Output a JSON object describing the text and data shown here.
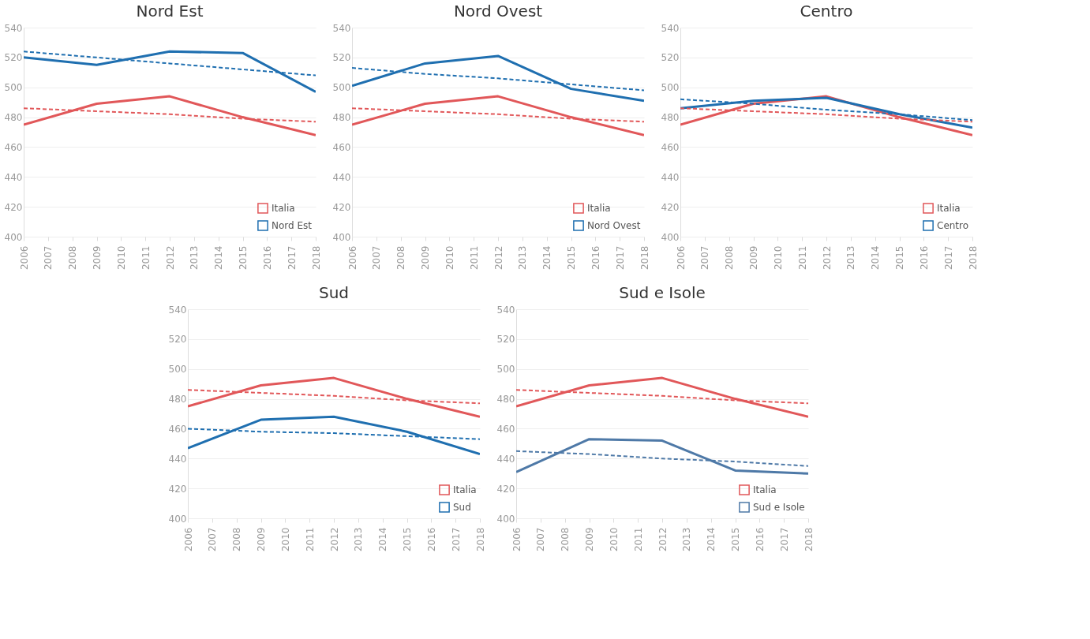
{
  "chart_data": [
    {
      "type": "line",
      "title": "Nord Est",
      "x": [
        2006,
        2009,
        2012,
        2015,
        2018
      ],
      "xlim": [
        2006,
        2018
      ],
      "xticks": [
        2006,
        2007,
        2008,
        2009,
        2010,
        2011,
        2012,
        2013,
        2014,
        2015,
        2016,
        2017,
        2018
      ],
      "ylim": [
        400,
        540
      ],
      "yticks": [
        400,
        420,
        440,
        460,
        480,
        500,
        520,
        540
      ],
      "grid": "y",
      "legend": "bottom right",
      "line_style": "solid",
      "series": [
        {
          "name": "Italia",
          "color": "#e15759",
          "values": [
            475,
            489,
            494,
            480,
            468
          ]
        },
        {
          "name": "Nord Est",
          "color": "#1f6fb0",
          "values": [
            520,
            515,
            524,
            523,
            497
          ]
        },
        {
          "type": "line",
          "color": "#e15759",
          "line_style": "dashed",
          "values": [
            486,
            484,
            482,
            479,
            477
          ]
        },
        {
          "type": "line",
          "color": "#1f6fb0",
          "line_style": "dashed",
          "values": [
            524,
            520,
            516,
            512,
            508
          ]
        }
      ]
    },
    {
      "type": "line",
      "title": "Nord Ovest",
      "x": [
        2006,
        2009,
        2012,
        2015,
        2018
      ],
      "xlim": [
        2006,
        2018
      ],
      "xticks": [
        2006,
        2007,
        2008,
        2009,
        2010,
        2011,
        2012,
        2013,
        2014,
        2015,
        2016,
        2017,
        2018
      ],
      "ylim": [
        400,
        540
      ],
      "yticks": [
        400,
        420,
        440,
        460,
        480,
        500,
        520,
        540
      ],
      "grid": "y",
      "legend": "bottom right",
      "line_style": "solid",
      "series": [
        {
          "name": "Italia",
          "color": "#e15759",
          "values": [
            475,
            489,
            494,
            480,
            468
          ]
        },
        {
          "name": "Nord Ovest",
          "color": "#1f6fb0",
          "values": [
            501,
            516,
            521,
            499,
            491
          ]
        },
        {
          "type": "line",
          "color": "#e15759",
          "line_style": "dashed",
          "values": [
            486,
            484,
            482,
            479,
            477
          ]
        },
        {
          "type": "line",
          "color": "#1f6fb0",
          "line_style": "dashed",
          "values": [
            513,
            509,
            506,
            502,
            498
          ]
        }
      ]
    },
    {
      "type": "line",
      "title": "Centro",
      "x": [
        2006,
        2009,
        2012,
        2015,
        2018
      ],
      "xlim": [
        2006,
        2018
      ],
      "xticks": [
        2006,
        2007,
        2008,
        2009,
        2010,
        2011,
        2012,
        2013,
        2014,
        2015,
        2016,
        2017,
        2018
      ],
      "ylim": [
        400,
        540
      ],
      "yticks": [
        400,
        420,
        440,
        460,
        480,
        500,
        520,
        540
      ],
      "grid": "y",
      "legend": "bottom right",
      "line_style": "solid",
      "series": [
        {
          "name": "Italia",
          "color": "#e15759",
          "values": [
            475,
            489,
            494,
            480,
            468
          ]
        },
        {
          "name": "Centro",
          "color": "#1f6fb0",
          "values": [
            486,
            491,
            493,
            482,
            473
          ]
        },
        {
          "type": "line",
          "color": "#e15759",
          "line_style": "dashed",
          "values": [
            486,
            484,
            482,
            479,
            477
          ]
        },
        {
          "type": "line",
          "color": "#1f6fb0",
          "line_style": "dashed",
          "values": [
            492,
            489,
            485,
            482,
            478
          ]
        }
      ]
    },
    {
      "type": "line",
      "title": "Sud",
      "x": [
        2006,
        2009,
        2012,
        2015,
        2018
      ],
      "xlim": [
        2006,
        2018
      ],
      "xticks": [
        2006,
        2007,
        2008,
        2009,
        2010,
        2011,
        2012,
        2013,
        2014,
        2015,
        2016,
        2017,
        2018
      ],
      "ylim": [
        400,
        540
      ],
      "yticks": [
        400,
        420,
        440,
        460,
        480,
        500,
        520,
        540
      ],
      "grid": "y",
      "legend": "bottom right",
      "line_style": "solid",
      "series": [
        {
          "name": "Italia",
          "color": "#e15759",
          "values": [
            475,
            489,
            494,
            480,
            468
          ]
        },
        {
          "name": "Sud",
          "color": "#1f6fb0",
          "values": [
            447,
            466,
            468,
            458,
            443
          ]
        },
        {
          "type": "line",
          "color": "#e15759",
          "line_style": "dashed",
          "values": [
            486,
            484,
            482,
            479,
            477
          ]
        },
        {
          "type": "line",
          "color": "#1f6fb0",
          "line_style": "dashed",
          "values": [
            460,
            458,
            457,
            455,
            453
          ]
        }
      ]
    },
    {
      "type": "line",
      "title": "Sud e Isole",
      "x": [
        2006,
        2009,
        2012,
        2015,
        2018
      ],
      "xlim": [
        2006,
        2018
      ],
      "xticks": [
        2006,
        2007,
        2008,
        2009,
        2010,
        2011,
        2012,
        2013,
        2014,
        2015,
        2016,
        2017,
        2018
      ],
      "ylim": [
        400,
        540
      ],
      "yticks": [
        400,
        420,
        440,
        460,
        480,
        500,
        520,
        540
      ],
      "grid": "y",
      "legend": "bottom right",
      "line_style": "solid",
      "series": [
        {
          "name": "Italia",
          "color": "#e15759",
          "values": [
            475,
            489,
            494,
            480,
            468
          ]
        },
        {
          "name": "Sud e Isole",
          "color": "#4e79a7",
          "values": [
            431,
            453,
            452,
            432,
            430
          ]
        },
        {
          "type": "line",
          "color": "#e15759",
          "line_style": "dashed",
          "values": [
            486,
            484,
            482,
            479,
            477
          ]
        },
        {
          "type": "line",
          "color": "#4e79a7",
          "line_style": "dashed",
          "values": [
            445,
            443,
            440,
            438,
            435
          ]
        }
      ]
    }
  ]
}
